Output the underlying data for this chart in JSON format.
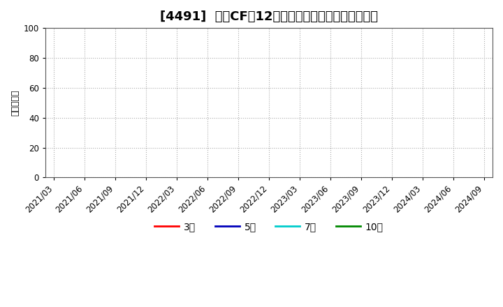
{
  "title": "[4491]  投賄CFの12か月移動合計の標準偏差の推移",
  "ylabel": "（百万円）",
  "ylim": [
    0,
    100
  ],
  "yticks": [
    0,
    20,
    40,
    60,
    80,
    100
  ],
  "x_tick_labels": [
    "2021/03",
    "2021/06",
    "2021/09",
    "2021/12",
    "2022/03",
    "2022/06",
    "2022/09",
    "2022/12",
    "2023/03",
    "2023/06",
    "2023/09",
    "2023/12",
    "2024/03",
    "2024/06",
    "2024/09"
  ],
  "legend_entries": [
    {
      "label": "3年",
      "color": "#ff0000",
      "lw": 2.0
    },
    {
      "label": "5年",
      "color": "#0000bb",
      "lw": 2.0
    },
    {
      "label": "7年",
      "color": "#00cccc",
      "lw": 2.0
    },
    {
      "label": "10年",
      "color": "#008800",
      "lw": 2.0
    }
  ],
  "background_color": "#ffffff",
  "grid_color": "#aaaaaa",
  "grid_style": "dotted",
  "title_fontsize": 13,
  "axis_fontsize": 9,
  "tick_fontsize": 8.5,
  "legend_fontsize": 10
}
